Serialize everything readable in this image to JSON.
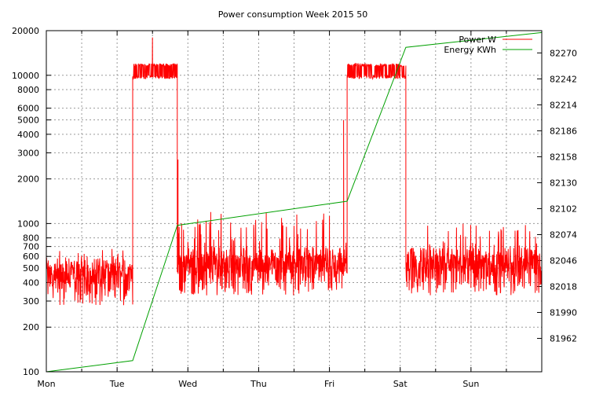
{
  "chart_data": {
    "type": "line",
    "title": "Power consumption Week 2015 50",
    "x_categories": [
      "Mon",
      "Tue",
      "Wed",
      "Thu",
      "Fri",
      "Sat",
      "Sun"
    ],
    "x_range_days": [
      0,
      7
    ],
    "y_left": {
      "scale": "log",
      "range": [
        100,
        20000
      ],
      "ticks": [
        100,
        200,
        300,
        400,
        500,
        600,
        700,
        800,
        1000,
        2000,
        3000,
        4000,
        5000,
        6000,
        8000,
        10000,
        20000
      ],
      "tick_labels": [
        "100",
        "200",
        "300",
        "400",
        "500",
        "600",
        "700",
        "800",
        "1000",
        "2000",
        "3000",
        "4000",
        "5000",
        "6000",
        "8000",
        "10000",
        "20000"
      ]
    },
    "y_right": {
      "scale": "linear",
      "range": [
        81926,
        82294
      ],
      "ticks": [
        81962,
        81990,
        82018,
        82046,
        82074,
        82102,
        82130,
        82158,
        82186,
        82214,
        82242,
        82270
      ],
      "tick_labels": [
        "81962",
        "81990",
        "82018",
        "82046",
        "82074",
        "82102",
        "82130",
        "82158",
        "82186",
        "82214",
        "82242",
        "82270"
      ]
    },
    "grid": true,
    "legend_position": "top-right",
    "series": [
      {
        "name": "Power W",
        "axis": "left",
        "color": "#ff0000",
        "segments": [
          {
            "x": [
              0.0,
              1.22
            ],
            "base": 360,
            "peak": 700,
            "noise": 0.22
          },
          {
            "x": [
              1.22,
              1.85
            ],
            "base": 10500,
            "peak": 12000,
            "noise": 0.05
          },
          {
            "x": [
              1.85,
              4.0
            ],
            "base": 420,
            "peak": 1200,
            "noise": 0.3
          },
          {
            "x": [
              4.0,
              4.25
            ],
            "base": 420,
            "peak": 800,
            "noise": 0.3
          },
          {
            "x": [
              4.25,
              5.08
            ],
            "base": 10500,
            "peak": 12000,
            "noise": 0.05
          },
          {
            "x": [
              5.08,
              7.0
            ],
            "base": 420,
            "peak": 1000,
            "noise": 0.28
          }
        ],
        "spikes": [
          {
            "x": 1.5,
            "y": 18000
          },
          {
            "x": 4.2,
            "y": 5000
          },
          {
            "x": 1.86,
            "y": 2700
          }
        ]
      },
      {
        "name": "Energy KWh",
        "axis": "right",
        "color": "#00a000",
        "x": [
          0.0,
          1.22,
          1.85,
          4.25,
          5.08,
          7.0
        ],
        "y": [
          81926,
          81938,
          82084,
          82110,
          82276,
          82292
        ]
      }
    ]
  }
}
